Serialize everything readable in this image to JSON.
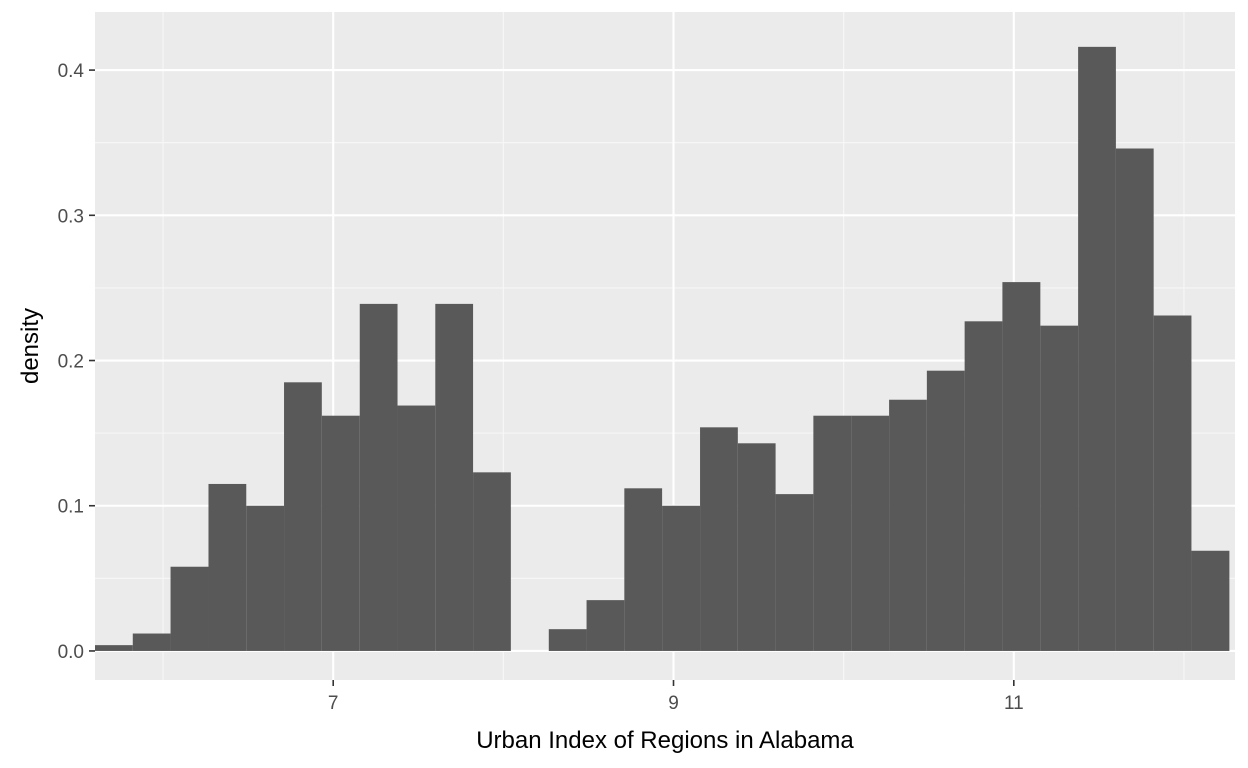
{
  "chart_data": {
    "type": "bar",
    "subtype": "histogram",
    "title": "",
    "xlabel": "Urban Index of Regions in Alabama",
    "ylabel": "density",
    "xlim": [
      5.6,
      12.3
    ],
    "ylim": [
      -0.02,
      0.44
    ],
    "x_ticks": [
      {
        "value": 7,
        "label": "7"
      },
      {
        "value": 9,
        "label": "9"
      },
      {
        "value": 11,
        "label": "11"
      }
    ],
    "x_minor_ticks": [
      6,
      8,
      10,
      12
    ],
    "y_ticks": [
      {
        "value": 0.0,
        "label": "0.0"
      },
      {
        "value": 0.1,
        "label": "0.1"
      },
      {
        "value": 0.2,
        "label": "0.2"
      },
      {
        "value": 0.3,
        "label": "0.3"
      },
      {
        "value": 0.4,
        "label": "0.4"
      }
    ],
    "y_minor_ticks": [
      0.05,
      0.15,
      0.25,
      0.35
    ],
    "grid": true,
    "bin_width": 0.2222,
    "bins": [
      {
        "x0": 5.6,
        "x1": 5.822,
        "density": 0.004
      },
      {
        "x0": 5.822,
        "x1": 6.044,
        "density": 0.012
      },
      {
        "x0": 6.044,
        "x1": 6.267,
        "density": 0.058
      },
      {
        "x0": 6.267,
        "x1": 6.489,
        "density": 0.115
      },
      {
        "x0": 6.489,
        "x1": 6.711,
        "density": 0.1
      },
      {
        "x0": 6.711,
        "x1": 6.933,
        "density": 0.185
      },
      {
        "x0": 6.933,
        "x1": 7.156,
        "density": 0.162
      },
      {
        "x0": 7.156,
        "x1": 7.378,
        "density": 0.239
      },
      {
        "x0": 7.378,
        "x1": 7.6,
        "density": 0.169
      },
      {
        "x0": 7.6,
        "x1": 7.822,
        "density": 0.239
      },
      {
        "x0": 7.822,
        "x1": 8.044,
        "density": 0.123
      },
      {
        "x0": 8.044,
        "x1": 8.267,
        "density": 0.0
      },
      {
        "x0": 8.267,
        "x1": 8.489,
        "density": 0.015
      },
      {
        "x0": 8.489,
        "x1": 8.711,
        "density": 0.035
      },
      {
        "x0": 8.711,
        "x1": 8.933,
        "density": 0.112
      },
      {
        "x0": 8.933,
        "x1": 9.156,
        "density": 0.1
      },
      {
        "x0": 9.156,
        "x1": 9.378,
        "density": 0.154
      },
      {
        "x0": 9.378,
        "x1": 9.6,
        "density": 0.143
      },
      {
        "x0": 9.6,
        "x1": 9.822,
        "density": 0.108
      },
      {
        "x0": 9.822,
        "x1": 10.044,
        "density": 0.162
      },
      {
        "x0": 10.044,
        "x1": 10.267,
        "density": 0.162
      },
      {
        "x0": 10.267,
        "x1": 10.489,
        "density": 0.173
      },
      {
        "x0": 10.489,
        "x1": 10.711,
        "density": 0.193
      },
      {
        "x0": 10.711,
        "x1": 10.933,
        "density": 0.227
      },
      {
        "x0": 10.933,
        "x1": 11.156,
        "density": 0.254
      },
      {
        "x0": 11.156,
        "x1": 11.378,
        "density": 0.224
      },
      {
        "x0": 11.378,
        "x1": 11.6,
        "density": 0.416
      },
      {
        "x0": 11.6,
        "x1": 11.822,
        "density": 0.346
      },
      {
        "x0": 11.822,
        "x1": 12.044,
        "density": 0.231
      },
      {
        "x0": 12.044,
        "x1": 12.267,
        "density": 0.069
      }
    ],
    "colors": {
      "panel_background": "#ebebeb",
      "grid_major": "#ffffff",
      "grid_minor": "#f7f7f7",
      "bar_fill": "#595959",
      "tick_text": "#4d4d4d",
      "tick_mark": "#333333",
      "axis_title": "#000000"
    }
  }
}
